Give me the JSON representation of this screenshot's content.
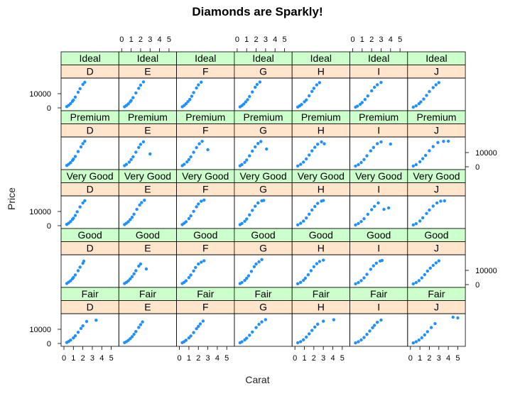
{
  "chart_data": {
    "type": "scatter",
    "title": "Diamonds are Sparkly!",
    "xlabel": "Carat",
    "ylabel": "Price",
    "xlim": [
      0,
      5.5
    ],
    "ylim": [
      0,
      19000
    ],
    "x_ticks": [
      0,
      1,
      2,
      3,
      4,
      5
    ],
    "y_ticks": [
      0,
      10000
    ],
    "y_tick_labels": [
      "0",
      "10000"
    ],
    "layout": "lattice 7 columns x 5 rows",
    "cut_levels": [
      "Ideal",
      "Premium",
      "Very Good",
      "Good",
      "Fair"
    ],
    "color_levels": [
      "D",
      "E",
      "F",
      "G",
      "H",
      "I",
      "J"
    ],
    "colors": {
      "points": "#1e90ff",
      "cut_strip": "#ccffcc",
      "color_strip": "#ffe5cc",
      "panel_border": "#000000"
    },
    "panels": [
      {
        "cut": "Ideal",
        "color": "D",
        "x": [
          0.3,
          0.5,
          0.7,
          0.9,
          1.0,
          1.2,
          1.5,
          1.7,
          2.0,
          2.2
        ],
        "y": [
          900,
          1800,
          3000,
          4600,
          5500,
          7600,
          11000,
          13500,
          16500,
          18000
        ]
      },
      {
        "cut": "Ideal",
        "color": "E",
        "x": [
          0.3,
          0.5,
          0.7,
          0.9,
          1.0,
          1.2,
          1.5,
          1.8,
          2.0,
          2.3
        ],
        "y": [
          800,
          1700,
          2800,
          4300,
          5200,
          7200,
          10500,
          13800,
          16000,
          18300
        ]
      },
      {
        "cut": "Ideal",
        "color": "F",
        "x": [
          0.3,
          0.5,
          0.7,
          0.9,
          1.1,
          1.3,
          1.5,
          1.8,
          2.0,
          2.3
        ],
        "y": [
          800,
          1700,
          2900,
          4400,
          5900,
          8200,
          10800,
          14000,
          16200,
          18100
        ]
      },
      {
        "cut": "Ideal",
        "color": "G",
        "x": [
          0.3,
          0.5,
          0.7,
          0.9,
          1.1,
          1.3,
          1.6,
          1.9,
          2.1,
          2.4
        ],
        "y": [
          700,
          1600,
          2700,
          4200,
          5800,
          8000,
          11200,
          14500,
          16500,
          18200
        ]
      },
      {
        "cut": "Ideal",
        "color": "H",
        "x": [
          0.3,
          0.5,
          0.7,
          1.0,
          1.2,
          1.5,
          1.8,
          2.0,
          2.3,
          2.6
        ],
        "y": [
          600,
          1400,
          2400,
          4300,
          5600,
          8500,
          11600,
          13800,
          16200,
          17800
        ]
      },
      {
        "cut": "Ideal",
        "color": "I",
        "x": [
          0.3,
          0.5,
          0.8,
          1.0,
          1.3,
          1.6,
          2.0,
          2.3,
          2.6,
          3.0
        ],
        "y": [
          500,
          1200,
          2500,
          3800,
          5900,
          8400,
          12000,
          14500,
          16300,
          17900
        ]
      },
      {
        "cut": "Ideal",
        "color": "J",
        "x": [
          0.3,
          0.6,
          0.9,
          1.1,
          1.4,
          1.7,
          2.0,
          2.4,
          2.7,
          3.0
        ],
        "y": [
          500,
          1400,
          2900,
          4200,
          6200,
          8800,
          11500,
          14300,
          16300,
          17800
        ]
      },
      {
        "cut": "Premium",
        "color": "D",
        "x": [
          0.3,
          0.5,
          0.7,
          0.9,
          1.0,
          1.2,
          1.5,
          1.8,
          2.0,
          2.2
        ],
        "y": [
          900,
          1800,
          2900,
          4500,
          5400,
          7300,
          10700,
          14000,
          16300,
          18000
        ]
      },
      {
        "cut": "Premium",
        "color": "E",
        "x": [
          0.3,
          0.5,
          0.8,
          1.0,
          1.2,
          1.5,
          1.8,
          2.0,
          2.3,
          3.0
        ],
        "y": [
          800,
          1700,
          3300,
          5100,
          7000,
          10300,
          13600,
          15800,
          17600,
          9000
        ]
      },
      {
        "cut": "Premium",
        "color": "F",
        "x": [
          0.3,
          0.5,
          0.8,
          1.0,
          1.2,
          1.5,
          1.8,
          2.1,
          2.4,
          3.0
        ],
        "y": [
          800,
          1700,
          3400,
          5100,
          7000,
          10200,
          13500,
          16200,
          17900,
          12000
        ]
      },
      {
        "cut": "Premium",
        "color": "G",
        "x": [
          0.3,
          0.5,
          0.8,
          1.0,
          1.3,
          1.6,
          1.9,
          2.2,
          2.5,
          3.1
        ],
        "y": [
          700,
          1600,
          3100,
          4800,
          7700,
          11000,
          14000,
          16400,
          17800,
          12500
        ]
      },
      {
        "cut": "Premium",
        "color": "H",
        "x": [
          0.3,
          0.6,
          0.9,
          1.2,
          1.5,
          1.8,
          2.1,
          2.4,
          2.8,
          3.1
        ],
        "y": [
          600,
          1700,
          3300,
          5500,
          8300,
          11200,
          13700,
          15900,
          17500,
          16200
        ]
      },
      {
        "cut": "Premium",
        "color": "I",
        "x": [
          0.3,
          0.6,
          0.9,
          1.2,
          1.5,
          1.9,
          2.2,
          2.6,
          3.0,
          4.0
        ],
        "y": [
          500,
          1500,
          3000,
          5100,
          7700,
          11200,
          13600,
          16300,
          17500,
          16000
        ]
      },
      {
        "cut": "Premium",
        "color": "J",
        "x": [
          0.3,
          0.6,
          1.0,
          1.3,
          1.6,
          2.0,
          2.4,
          2.9,
          3.5,
          4.0
        ],
        "y": [
          500,
          1500,
          3500,
          5700,
          8000,
          11300,
          14200,
          17100,
          17900,
          18000
        ]
      },
      {
        "cut": "Very Good",
        "color": "D",
        "x": [
          0.3,
          0.5,
          0.7,
          0.9,
          1.0,
          1.2,
          1.4,
          1.7,
          2.0,
          2.2
        ],
        "y": [
          900,
          1800,
          2900,
          4400,
          5300,
          7200,
          9800,
          13200,
          16000,
          17600
        ]
      },
      {
        "cut": "Very Good",
        "color": "E",
        "x": [
          0.3,
          0.5,
          0.7,
          0.9,
          1.1,
          1.3,
          1.6,
          1.9,
          2.1,
          2.4
        ],
        "y": [
          800,
          1700,
          2800,
          4300,
          5900,
          8100,
          11500,
          14600,
          16300,
          17900
        ]
      },
      {
        "cut": "Very Good",
        "color": "F",
        "x": [
          0.3,
          0.5,
          0.7,
          1.0,
          1.2,
          1.5,
          1.8,
          2.0,
          2.3,
          2.6
        ],
        "y": [
          800,
          1700,
          2800,
          5000,
          6900,
          10100,
          13300,
          15300,
          17200,
          18000
        ]
      },
      {
        "cut": "Very Good",
        "color": "G",
        "x": [
          0.3,
          0.5,
          0.8,
          1.0,
          1.3,
          1.6,
          1.9,
          2.2,
          2.6,
          2.8
        ],
        "y": [
          700,
          1600,
          3100,
          4700,
          7600,
          10800,
          13700,
          16000,
          17500,
          17800
        ]
      },
      {
        "cut": "Very Good",
        "color": "H",
        "x": [
          0.3,
          0.6,
          0.9,
          1.2,
          1.5,
          1.8,
          2.1,
          2.4,
          2.8,
          3.0
        ],
        "y": [
          600,
          1700,
          3200,
          5400,
          8100,
          11000,
          13500,
          15700,
          17300,
          17700
        ]
      },
      {
        "cut": "Very Good",
        "color": "I",
        "x": [
          0.3,
          0.6,
          0.9,
          1.2,
          1.6,
          2.0,
          2.3,
          2.7,
          3.3,
          3.8
        ],
        "y": [
          500,
          1500,
          2900,
          4900,
          8000,
          11300,
          13600,
          16000,
          11500,
          12500
        ]
      },
      {
        "cut": "Very Good",
        "color": "J",
        "x": [
          0.3,
          0.6,
          1.0,
          1.3,
          1.7,
          2.0,
          2.4,
          2.8,
          3.2,
          3.6
        ],
        "y": [
          500,
          1400,
          3300,
          5500,
          8600,
          11000,
          13800,
          16000,
          17300,
          17500
        ]
      },
      {
        "cut": "Good",
        "color": "D",
        "x": [
          0.3,
          0.5,
          0.7,
          0.9,
          1.0,
          1.2,
          1.5,
          1.7,
          2.0,
          2.1
        ],
        "y": [
          800,
          1700,
          2700,
          4100,
          5000,
          6800,
          9800,
          12300,
          15000,
          16500
        ]
      },
      {
        "cut": "Good",
        "color": "E",
        "x": [
          0.3,
          0.5,
          0.7,
          0.9,
          1.1,
          1.3,
          1.5,
          1.8,
          2.0,
          2.6
        ],
        "y": [
          800,
          1600,
          2600,
          4000,
          5600,
          7600,
          9800,
          13000,
          14500,
          11000
        ]
      },
      {
        "cut": "Good",
        "color": "F",
        "x": [
          0.3,
          0.5,
          0.7,
          1.0,
          1.2,
          1.5,
          1.7,
          2.0,
          2.3,
          2.6
        ],
        "y": [
          800,
          1600,
          2700,
          4900,
          6700,
          9600,
          12000,
          14500,
          15800,
          16800
        ]
      },
      {
        "cut": "Good",
        "color": "G",
        "x": [
          0.3,
          0.5,
          0.8,
          1.0,
          1.2,
          1.5,
          1.8,
          2.0,
          2.3,
          2.6
        ],
        "y": [
          700,
          1500,
          2900,
          4400,
          6200,
          9300,
          12600,
          14500,
          16000,
          17600
        ]
      },
      {
        "cut": "Good",
        "color": "H",
        "x": [
          0.3,
          0.6,
          0.9,
          1.1,
          1.4,
          1.7,
          2.0,
          2.3,
          2.6,
          3.0
        ],
        "y": [
          600,
          1600,
          3000,
          4500,
          6900,
          9800,
          12600,
          14700,
          16300,
          17200
        ]
      },
      {
        "cut": "Good",
        "color": "I",
        "x": [
          0.3,
          0.6,
          0.9,
          1.2,
          1.5,
          1.9,
          2.2,
          2.5,
          2.9,
          3.1
        ],
        "y": [
          500,
          1400,
          2800,
          4700,
          7200,
          10800,
          13200,
          15100,
          16600,
          17000
        ]
      },
      {
        "cut": "Good",
        "color": "J",
        "x": [
          0.3,
          0.6,
          0.9,
          1.2,
          1.5,
          1.8,
          2.1,
          2.4,
          2.7,
          3.0
        ],
        "y": [
          500,
          1400,
          2800,
          4700,
          7000,
          9500,
          11600,
          13500,
          15300,
          16700
        ]
      },
      {
        "cut": "Fair",
        "color": "D",
        "x": [
          0.3,
          0.5,
          0.7,
          1.0,
          1.2,
          1.5,
          1.8,
          2.0,
          2.4,
          3.4
        ],
        "y": [
          700,
          1400,
          2400,
          3900,
          5400,
          7900,
          10600,
          12400,
          15500,
          16400
        ]
      },
      {
        "cut": "Fair",
        "color": "E",
        "x": [
          0.3,
          0.5,
          0.7,
          0.9,
          1.1,
          1.3,
          1.5,
          1.8,
          2.0,
          2.2
        ],
        "y": [
          600,
          1300,
          2200,
          3400,
          4800,
          6500,
          8400,
          11300,
          13300,
          15200
        ]
      },
      {
        "cut": "Fair",
        "color": "F",
        "x": [
          0.3,
          0.5,
          0.7,
          1.0,
          1.2,
          1.5,
          1.8,
          2.0,
          2.2,
          2.5
        ],
        "y": [
          600,
          1300,
          2300,
          3900,
          5300,
          7700,
          10400,
          12000,
          13800,
          15800
        ]
      },
      {
        "cut": "Fair",
        "color": "G",
        "x": [
          0.3,
          0.5,
          0.8,
          1.0,
          1.3,
          1.6,
          2.0,
          2.3,
          2.6,
          3.0
        ],
        "y": [
          500,
          1200,
          2500,
          3700,
          5800,
          8100,
          11200,
          13500,
          15200,
          16800
        ]
      },
      {
        "cut": "Fair",
        "color": "H",
        "x": [
          0.3,
          0.6,
          0.9,
          1.2,
          1.5,
          1.8,
          2.1,
          2.4,
          3.0,
          4.1
        ],
        "y": [
          500,
          1300,
          2600,
          4500,
          6800,
          9200,
          11600,
          13600,
          15700,
          16700
        ]
      },
      {
        "cut": "Fair",
        "color": "I",
        "x": [
          0.3,
          0.6,
          0.9,
          1.2,
          1.5,
          1.8,
          2.1,
          2.3,
          2.6,
          3.0
        ],
        "y": [
          400,
          1200,
          2500,
          4200,
          6400,
          8800,
          11100,
          12800,
          14900,
          16500
        ]
      },
      {
        "cut": "Fair",
        "color": "J",
        "x": [
          0.3,
          0.6,
          0.9,
          1.2,
          1.5,
          1.8,
          2.2,
          2.6,
          4.5,
          5.0
        ],
        "y": [
          400,
          1200,
          2400,
          4000,
          6000,
          8300,
          11200,
          14000,
          18500,
          18000
        ]
      }
    ]
  }
}
